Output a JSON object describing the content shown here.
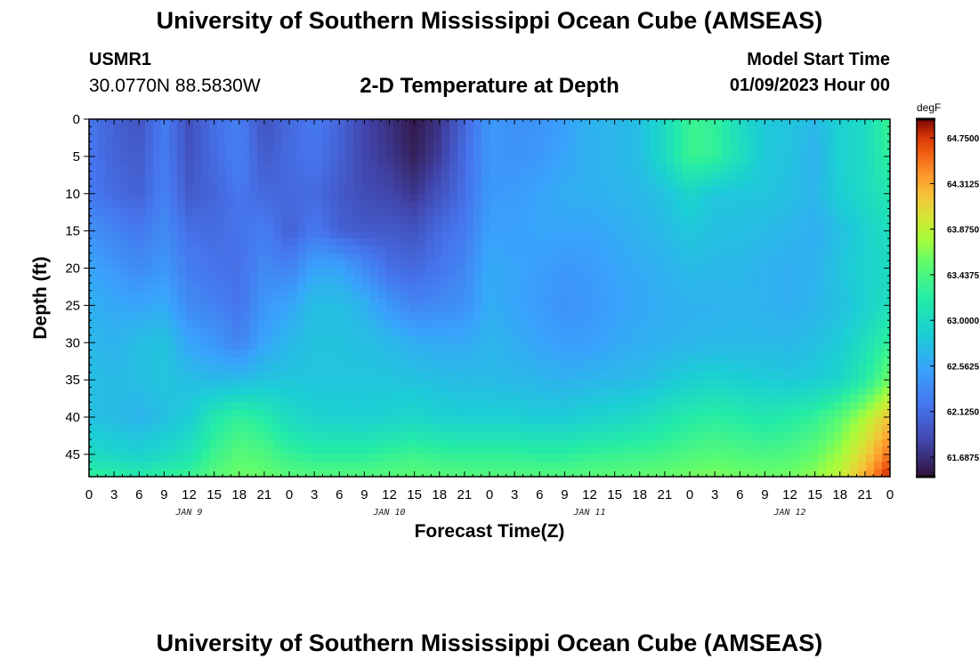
{
  "header": {
    "title": "University of Southern Mississippi Ocean Cube (AMSEAS)",
    "station": "USMR1",
    "coordinates": "30.0770N  88.5830W",
    "subtitle": "2-D Temperature at Depth",
    "model_start_label": "Model Start Time",
    "model_start_value": "01/09/2023 Hour 00"
  },
  "footer": {
    "title": "University of Southern Mississippi Ocean Cube (AMSEAS)"
  },
  "chart_data": {
    "type": "heatmap",
    "xlabel": "Forecast Time(Z)",
    "ylabel": "Depth (ft)",
    "x_tick_labels": [
      "0",
      "3",
      "6",
      "9",
      "12",
      "15",
      "18",
      "21",
      "0",
      "3",
      "6",
      "9",
      "12",
      "15",
      "18",
      "21",
      "0",
      "3",
      "6",
      "9",
      "12",
      "15",
      "18",
      "21",
      "0",
      "3",
      "6",
      "9",
      "12",
      "15",
      "18",
      "21",
      "0"
    ],
    "date_labels": [
      {
        "label": "JAN 9",
        "hour": 12
      },
      {
        "label": "JAN 10",
        "hour": 36
      },
      {
        "label": "JAN 11",
        "hour": 60
      },
      {
        "label": "JAN 12",
        "hour": 84
      }
    ],
    "x_range_hours": [
      0,
      96
    ],
    "y_ticks": [
      0,
      5,
      10,
      15,
      20,
      25,
      30,
      35,
      40,
      45
    ],
    "ylim": [
      0,
      48
    ],
    "y_inverted": true,
    "colorbar": {
      "unit": "degF",
      "min": 61.5,
      "max": 64.93,
      "tick_labels": [
        "64.7500",
        "64.3125",
        "63.8750",
        "63.4375",
        "63.0000",
        "62.5625",
        "62.1250",
        "61.6875"
      ],
      "tick_values": [
        64.75,
        64.3125,
        63.875,
        63.4375,
        63.0,
        62.5625,
        62.125,
        61.6875
      ]
    },
    "grid_times_hours": [
      0,
      3,
      6,
      9,
      12,
      15,
      18,
      21,
      24,
      27,
      30,
      33,
      36,
      39,
      42,
      45,
      48,
      51,
      54,
      57,
      60,
      63,
      66,
      69,
      72,
      75,
      78,
      81,
      84,
      87,
      90,
      93,
      96
    ],
    "grid_depths_ft": [
      0,
      5,
      10,
      15,
      20,
      25,
      30,
      35,
      40,
      45,
      48
    ],
    "values_degF": [
      [
        62.2,
        62.05,
        61.95,
        62.25,
        61.92,
        62.15,
        62.25,
        61.95,
        62.1,
        62.22,
        62.08,
        61.85,
        61.7,
        61.55,
        61.72,
        62.08,
        62.45,
        62.4,
        62.42,
        62.52,
        62.66,
        62.68,
        62.75,
        63.0,
        63.35,
        63.3,
        63.02,
        62.82,
        62.8,
        62.7,
        62.9,
        63.0,
        63.35
      ],
      [
        62.2,
        62.07,
        62.0,
        62.25,
        61.95,
        62.12,
        62.28,
        62.0,
        62.12,
        62.2,
        62.05,
        61.85,
        61.75,
        61.6,
        61.8,
        62.12,
        62.45,
        62.42,
        62.45,
        62.55,
        62.64,
        62.68,
        62.75,
        63.0,
        63.35,
        63.3,
        63.05,
        62.82,
        62.78,
        62.65,
        62.9,
        63.0,
        63.3
      ],
      [
        62.22,
        62.12,
        62.05,
        62.28,
        62.0,
        62.08,
        62.2,
        62.1,
        62.1,
        62.12,
        62.0,
        61.9,
        61.85,
        61.75,
        61.95,
        62.15,
        62.47,
        62.48,
        62.55,
        62.62,
        62.64,
        62.67,
        62.7,
        62.78,
        62.95,
        62.8,
        62.8,
        62.8,
        62.75,
        62.68,
        62.88,
        63.0,
        63.15
      ],
      [
        62.4,
        62.3,
        62.22,
        62.35,
        62.15,
        62.12,
        62.18,
        62.25,
        62.05,
        62.22,
        62.05,
        62.0,
        62.0,
        61.95,
        62.12,
        62.22,
        62.52,
        62.52,
        62.56,
        62.55,
        62.55,
        62.6,
        62.66,
        62.72,
        62.82,
        62.76,
        62.75,
        62.72,
        62.68,
        62.62,
        62.75,
        62.9,
        63.05
      ],
      [
        62.55,
        62.45,
        62.35,
        62.45,
        62.25,
        62.18,
        62.15,
        62.35,
        62.28,
        62.55,
        62.55,
        62.35,
        62.15,
        62.1,
        62.2,
        62.32,
        62.6,
        62.55,
        62.5,
        62.45,
        62.48,
        62.55,
        62.6,
        62.65,
        62.72,
        62.7,
        62.7,
        62.65,
        62.62,
        62.65,
        62.8,
        62.92,
        63.0
      ],
      [
        62.65,
        62.58,
        62.55,
        62.6,
        62.35,
        62.28,
        62.18,
        62.45,
        62.55,
        62.75,
        62.75,
        62.65,
        62.45,
        62.3,
        62.35,
        62.4,
        62.62,
        62.55,
        62.48,
        62.42,
        62.45,
        62.52,
        62.58,
        62.62,
        62.65,
        62.65,
        62.68,
        62.65,
        62.62,
        62.68,
        62.75,
        62.9,
        63.05
      ],
      [
        62.7,
        62.65,
        62.75,
        62.78,
        62.55,
        62.45,
        62.3,
        62.55,
        62.7,
        62.78,
        62.78,
        62.75,
        62.7,
        62.62,
        62.6,
        62.58,
        62.68,
        62.62,
        62.55,
        62.5,
        62.5,
        62.58,
        62.62,
        62.65,
        62.68,
        62.7,
        62.7,
        62.7,
        62.7,
        62.75,
        62.85,
        63.05,
        63.3
      ],
      [
        62.75,
        62.72,
        62.75,
        62.8,
        62.75,
        62.7,
        62.72,
        62.78,
        62.8,
        62.8,
        62.8,
        62.8,
        62.8,
        62.78,
        62.75,
        62.72,
        62.72,
        62.7,
        62.68,
        62.65,
        62.68,
        62.7,
        62.72,
        62.8,
        62.88,
        62.92,
        62.88,
        62.85,
        62.82,
        62.85,
        62.95,
        63.2,
        63.6
      ],
      [
        62.75,
        62.72,
        62.66,
        62.75,
        62.85,
        63.15,
        63.3,
        63.2,
        63.0,
        62.92,
        62.9,
        62.88,
        62.92,
        62.95,
        62.9,
        62.88,
        62.88,
        62.88,
        62.85,
        62.85,
        62.9,
        62.95,
        63.0,
        63.1,
        63.2,
        63.25,
        63.2,
        63.15,
        63.2,
        63.3,
        63.5,
        63.8,
        64.2
      ],
      [
        63.0,
        62.95,
        62.9,
        62.98,
        63.1,
        63.35,
        63.5,
        63.45,
        63.3,
        63.25,
        63.25,
        63.25,
        63.3,
        63.35,
        63.3,
        63.28,
        63.28,
        63.28,
        63.25,
        63.25,
        63.3,
        63.32,
        63.35,
        63.38,
        63.45,
        63.48,
        63.45,
        63.42,
        63.45,
        63.55,
        63.75,
        64.1,
        64.55
      ],
      [
        63.3,
        63.25,
        63.2,
        63.28,
        63.35,
        63.5,
        63.6,
        63.58,
        63.5,
        63.48,
        63.48,
        63.48,
        63.5,
        63.52,
        63.5,
        63.48,
        63.48,
        63.48,
        63.48,
        63.48,
        63.5,
        63.52,
        63.55,
        63.58,
        63.62,
        63.65,
        63.62,
        63.6,
        63.62,
        63.7,
        63.9,
        64.3,
        64.85
      ]
    ]
  }
}
